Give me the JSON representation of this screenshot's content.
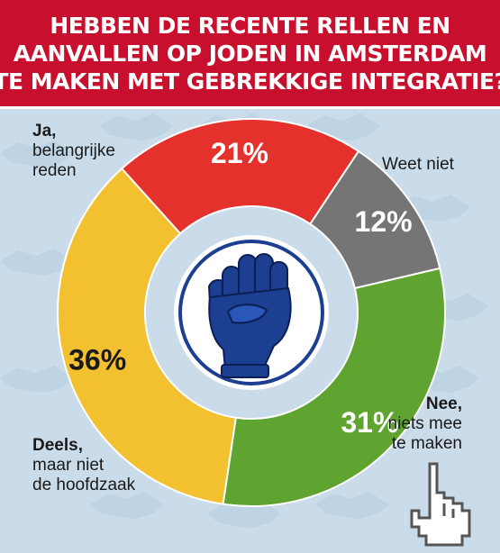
{
  "header": {
    "title_lines": [
      "HEBBEN DE RECENTE RELLEN EN",
      "AANVALLEN OP JODEN IN AMSTERDAM",
      "TE MAKEN MET GEBREKKIGE INTEGRATIE?"
    ]
  },
  "colors": {
    "header": "#c8102e",
    "ja": "#e4312b",
    "weet_niet": "#757575",
    "nee": "#5fa331",
    "deels": "#f3c02f",
    "icon_blue": "#1c3f91"
  },
  "chart_data": {
    "type": "pie",
    "title": "HEBBEN DE RECENTE RELLEN EN AANVALLEN OP JODEN IN AMSTERDAM TE MAKEN MET GEBREKKIGE INTEGRATIE?",
    "slices": [
      {
        "key": "ja",
        "value": 21,
        "label": "21%",
        "legend_bold": "Ja,",
        "legend_rest": [
          "belangrijke",
          "reden"
        ]
      },
      {
        "key": "weet_niet",
        "value": 12,
        "label": "12%",
        "legend_bold": "",
        "legend_rest": [
          "Weet niet"
        ]
      },
      {
        "key": "nee",
        "value": 31,
        "label": "31%",
        "legend_bold": "Nee,",
        "legend_rest": [
          "niets mee",
          "te maken"
        ]
      },
      {
        "key": "deels",
        "value": 36,
        "label": "36%",
        "legend_bold": "Deels,",
        "legend_rest": [
          "maar niet",
          "de hoofdzaak"
        ]
      }
    ]
  },
  "icons": {
    "center": "raised-fist-icon",
    "corner": "pointing-hand-cursor-icon",
    "background": "handshake-pattern"
  }
}
